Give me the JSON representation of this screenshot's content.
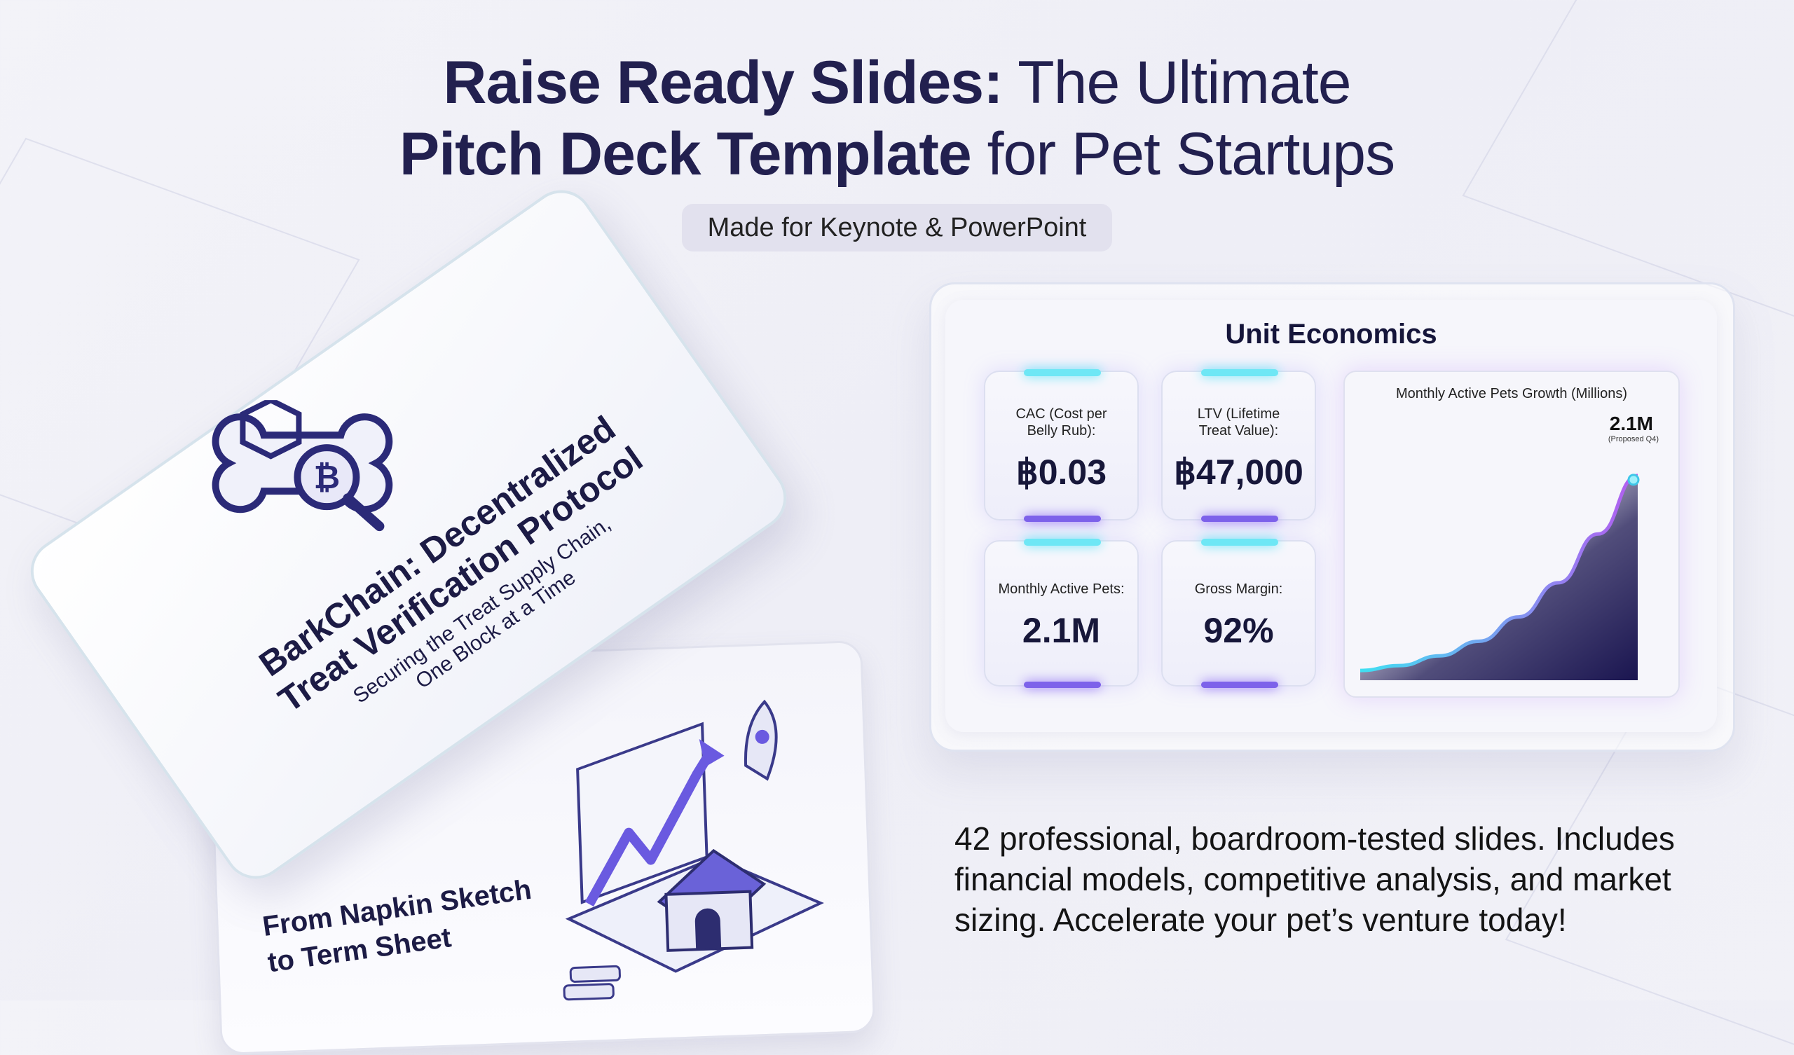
{
  "header": {
    "title_bold_1": "Raise Ready Slides:",
    "title_rest_1": " The Ultimate",
    "title_bold_2": "Pitch Deck Template",
    "title_rest_2": " for Pet Startups",
    "badge": "Made for Keynote & PowerPoint"
  },
  "title_slide": {
    "logo": "bone-bitcoin-magnifier-logo",
    "title_1": "BarkChain: Decentralized",
    "title_2": "Treat Verification Protocol",
    "subtitle_1": "Securing the Treat Supply Chain,",
    "subtitle_2": "One Block at a Time"
  },
  "growth_slide": {
    "heading_1": "From Napkin Sketch",
    "heading_2": "to Term Sheet",
    "illustration": "doghouse-growth-chart-rocket-icon"
  },
  "unit_economics": {
    "title": "Unit Economics",
    "metrics": [
      {
        "label": "CAC (Cost per Belly Rub):",
        "value": "฿0.03"
      },
      {
        "label": "LTV (Lifetime Treat Value):",
        "value": "฿47,000"
      },
      {
        "label": "Monthly Active Pets:",
        "value": "2.1M"
      },
      {
        "label": "Gross Margin:",
        "value": "92%"
      }
    ]
  },
  "chart_data": {
    "type": "area",
    "title": "Monthly Active Pets Growth (Millions)",
    "annotation": "2.1M",
    "annotation_note": "(Proposed Q4)",
    "values": [
      0.1,
      0.15,
      0.25,
      0.4,
      0.65,
      1.0,
      1.5,
      2.1
    ],
    "ylim": [
      0,
      2.3
    ],
    "grid": false,
    "colors": {
      "line_start": "#3fe0f2",
      "line_end": "#b45cf0",
      "fill": "#1a1550"
    }
  },
  "description": "42 professional, boardroom-tested slides. Includes financial models, competitive analysis, and market sizing. Accelerate your pet’s venture today!"
}
